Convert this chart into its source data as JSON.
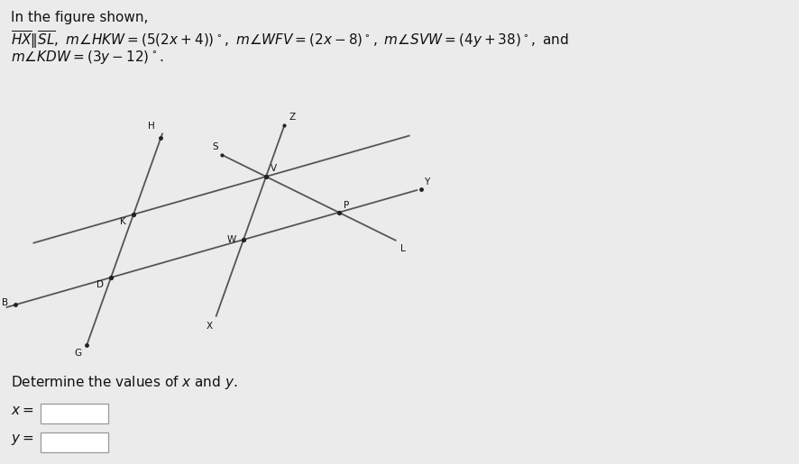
{
  "fig_width": 8.87,
  "fig_height": 5.15,
  "dpi": 100,
  "bg_color": "#ebebeb",
  "line_color": "#555555",
  "text_color": "#111111",
  "line1": "In the figure shown,",
  "line2a": "$\\overline{HX}\\|\\overline{SL},\\ m\\angle HKW=(5(2x+4))^\\circ,\\ m\\angle WFV=(2x-8)^\\circ,\\ m\\angle SVW=(4y+38)^\\circ,$ and",
  "line2b": "$m\\angle KDW=(3y-12)^\\circ.$",
  "det_text": "Determine the values of $x$ and $y$.",
  "x_label": "$x=$",
  "y_label": "$y=$",
  "fs_body": 11.0,
  "fs_point": 7.5,
  "lw": 1.3
}
